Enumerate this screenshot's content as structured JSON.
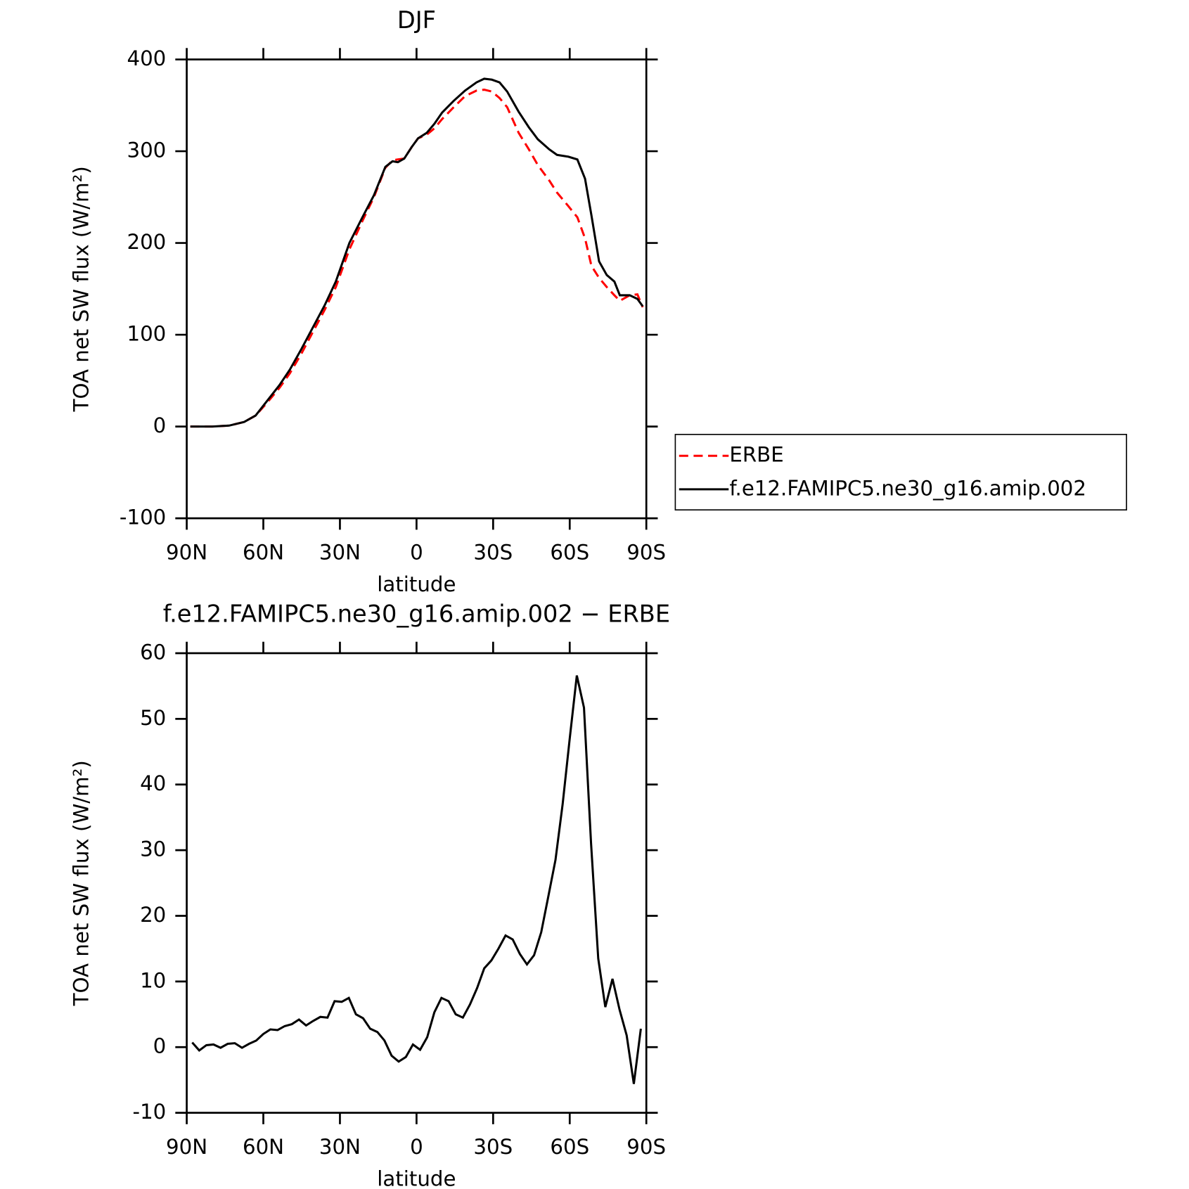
{
  "chart_data": [
    {
      "type": "line",
      "title": "DJF",
      "xlabel": "latitude",
      "ylabel": "TOA net SW flux (W/m²)",
      "x": [
        88.6,
        85,
        80,
        73.4,
        67.5,
        63,
        58.5,
        53.7,
        49.6,
        45,
        40.6,
        36,
        31.6,
        26.3,
        21.2,
        16.7,
        12.2,
        9.4,
        7.3,
        4.8,
        1.8,
        -0.6,
        -4,
        -7,
        -10,
        -14.6,
        -19,
        -23.5,
        -26.5,
        -29.5,
        -32.5,
        -35.5,
        -40,
        -44,
        -47.5,
        -52,
        -55,
        -59.5,
        -63,
        -66,
        -68.5,
        -71.5,
        -74.5,
        -77.5,
        -79.6,
        -83.5,
        -86.5,
        -88.6
      ],
      "series": [
        {
          "name": "ERBE",
          "color": "#ff0000",
          "style": "dashed",
          "values": [
            0,
            0,
            0,
            1,
            5,
            12,
            26,
            42,
            58,
            80,
            103,
            127,
            152,
            193,
            224,
            250,
            282,
            290,
            291,
            292,
            305,
            314,
            318,
            325,
            335,
            348,
            360,
            366,
            367,
            365,
            358,
            348,
            320,
            302,
            285,
            268,
            255,
            240,
            228,
            205,
            175,
            162,
            152,
            143,
            137,
            143,
            144,
            130
          ]
        },
        {
          "name": "f.e12.FAMIPC5.ne30_g16.amip.002",
          "color": "#000000",
          "style": "solid",
          "values": [
            0,
            0,
            0,
            1,
            5,
            12,
            28,
            45,
            62,
            85,
            108,
            132,
            158,
            200,
            228,
            252,
            283,
            289,
            288,
            292,
            305,
            314,
            320,
            330,
            342,
            355,
            366,
            375,
            379,
            378,
            375,
            365,
            343,
            326,
            313,
            302,
            296,
            294,
            291,
            270,
            230,
            180,
            165,
            158,
            143,
            143,
            139,
            131
          ]
        }
      ],
      "xlim": [
        90,
        -90
      ],
      "xticks": [
        {
          "value": 90,
          "label": "90N"
        },
        {
          "value": 60,
          "label": "60N"
        },
        {
          "value": 30,
          "label": "30N"
        },
        0,
        {
          "value": -30,
          "label": "30S"
        },
        {
          "value": -60,
          "label": "60S"
        },
        {
          "value": -90,
          "label": "90S"
        }
      ],
      "ylim": [
        -100,
        400
      ],
      "yticks": [
        -100,
        0,
        100,
        200,
        300,
        400
      ],
      "legend": "right"
    },
    {
      "type": "line",
      "title": "f.e12.FAMIPC5.ne30_g16.amip.002 − ERBE",
      "xlabel": "latitude",
      "ylabel": "TOA net SW flux (W/m²)",
      "x": [
        87.86,
        85.1,
        82.31,
        79.53,
        76.74,
        73.95,
        71.16,
        68.37,
        65.58,
        62.79,
        60,
        57.21,
        54.42,
        51.63,
        48.84,
        46.04,
        43.25,
        40.46,
        37.67,
        34.88,
        32.09,
        29.3,
        26.51,
        23.72,
        20.93,
        18.14,
        15.35,
        12.56,
        9.77,
        6.98,
        4.19,
        1.4,
        -1.4,
        -4.19,
        -6.98,
        -9.77,
        -12.56,
        -15.35,
        -18.14,
        -20.93,
        -23.72,
        -26.51,
        -29.3,
        -32.09,
        -34.88,
        -37.67,
        -40.46,
        -43.25,
        -46.04,
        -48.84,
        -51.63,
        -54.42,
        -57.21,
        -60,
        -62.79,
        -65.58,
        -68.37,
        -71.16,
        -73.95,
        -76.74,
        -79.53,
        -82.31,
        -85.1,
        -87.86
      ],
      "series": [
        {
          "name": "f.e12.FAMIPC5.ne30_g16.amip.002 − ERBE",
          "color": "#000000",
          "style": "solid",
          "values": [
            0.7,
            -0.5,
            0.3,
            0.4,
            -0.1,
            0.5,
            0.6,
            -0.1,
            0.5,
            1,
            2,
            2.7,
            2.6,
            3.2,
            3.5,
            4.2,
            3.3,
            4,
            4.6,
            4.5,
            7,
            6.9,
            7.5,
            5,
            4.4,
            2.8,
            2.3,
            1,
            -1.3,
            -2.2,
            -1.5,
            0.4,
            -0.4,
            1.5,
            5.3,
            7.5,
            7,
            5,
            4.5,
            6.5,
            9,
            12,
            13.2,
            15,
            17,
            16.4,
            14.2,
            12.6,
            14,
            17.5,
            23,
            28.5,
            37,
            47,
            56.6,
            51.7,
            31,
            13.5,
            6.1,
            10.4,
            5.7,
            1.8,
            -5.6,
            2.8
          ]
        }
      ],
      "xlim": [
        90,
        -90
      ],
      "xticks": [
        {
          "value": 90,
          "label": "90N"
        },
        {
          "value": 60,
          "label": "60N"
        },
        {
          "value": 30,
          "label": "30N"
        },
        0,
        {
          "value": -30,
          "label": "30S"
        },
        {
          "value": -60,
          "label": "60S"
        },
        {
          "value": -90,
          "label": "90S"
        }
      ],
      "ylim": [
        -10,
        60
      ],
      "yticks": [
        -10,
        0,
        10,
        20,
        30,
        40,
        50,
        60
      ]
    }
  ]
}
